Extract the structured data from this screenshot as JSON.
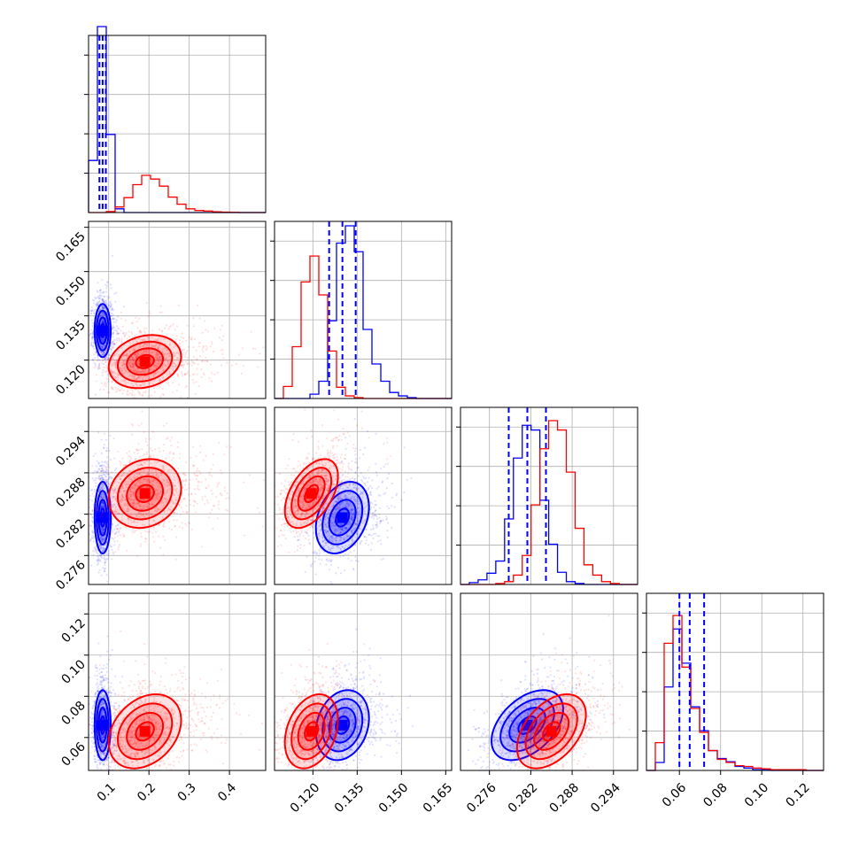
{
  "chart_data": {
    "type": "corner",
    "series": [
      {
        "name": "",
        "color": "#0000ff",
        "quantiles_shown": true,
        "mean": [
          0.085,
          0.13,
          0.2815,
          0.066
        ],
        "std": [
          0.01,
          0.0045,
          0.0026,
          0.0085
        ],
        "quantiles": [
          [
            0.077,
            0.085,
            0.093
          ],
          [
            0.1255,
            0.13,
            0.1345
          ],
          [
            0.2788,
            0.2815,
            0.2842
          ],
          [
            0.06,
            0.065,
            0.072
          ]
        ],
        "corr": [
          [
            0,
            0,
            0,
            0
          ],
          [
            0,
            0,
            0.3,
            0.2
          ],
          [
            0,
            0.3,
            0,
            0.45
          ],
          [
            0,
            0.2,
            0.45,
            0
          ]
        ]
      },
      {
        "name": "",
        "color": "#ff0000",
        "quantiles_shown": false,
        "mean": [
          0.19,
          0.1195,
          0.285,
          0.063
        ],
        "std": [
          0.045,
          0.0045,
          0.0025,
          0.009
        ],
        "corr": [
          [
            0,
            0.2,
            0.15,
            0.3
          ],
          [
            0.2,
            0,
            0.5,
            0.3
          ],
          [
            0.15,
            0.5,
            0,
            0.45
          ],
          [
            0.3,
            0.3,
            0.45,
            0
          ]
        ]
      }
    ],
    "parameters": [
      {
        "xlim": [
          0.05,
          0.49
        ],
        "ticks": [
          0.1,
          0.2,
          0.3,
          0.4
        ],
        "tick_labels": [
          "0.1",
          "0.2",
          "0.3",
          "0.4"
        ]
      },
      {
        "xlim": [
          0.107,
          0.167
        ],
        "ticks": [
          0.12,
          0.135,
          0.15,
          0.165
        ],
        "tick_labels": [
          "0.120",
          "0.135",
          "0.150",
          "0.165"
        ]
      },
      {
        "xlim": [
          0.2718,
          0.2975
        ],
        "ticks": [
          0.276,
          0.282,
          0.288,
          0.294
        ],
        "tick_labels": [
          "0.276",
          "0.282",
          "0.288",
          "0.294"
        ]
      },
      {
        "xlim": [
          0.044,
          0.13
        ],
        "ticks": [
          0.06,
          0.08,
          0.1,
          0.12
        ],
        "tick_labels": [
          "0.06",
          "0.08",
          "0.10",
          "0.12"
        ]
      }
    ],
    "histograms": [
      {
        "edges": [
          0.05,
          0.072,
          0.094,
          0.116,
          0.138,
          0.16,
          0.182,
          0.204,
          0.226,
          0.248,
          0.27,
          0.292,
          0.314,
          0.336,
          0.358,
          0.38,
          0.402,
          0.424,
          0.446,
          0.468,
          0.49
        ],
        "blue": [
          0.28,
          1.0,
          0.42,
          0.02,
          0,
          0,
          0,
          0,
          0,
          0,
          0,
          0,
          0,
          0,
          0,
          0,
          0,
          0,
          0,
          0
        ],
        "red": [
          0,
          0,
          0.005,
          0.03,
          0.08,
          0.15,
          0.2,
          0.18,
          0.142,
          0.083,
          0.045,
          0.02,
          0.011,
          0.008,
          0.004,
          0.002,
          0.001,
          0,
          0,
          0
        ]
      },
      {
        "edges": [
          0.107,
          0.11,
          0.113,
          0.116,
          0.119,
          0.122,
          0.125,
          0.128,
          0.131,
          0.134,
          0.137,
          0.14,
          0.143,
          0.146,
          0.149,
          0.152,
          0.155,
          0.158,
          0.161,
          0.164,
          0.167
        ],
        "blue": [
          0,
          0,
          0,
          0,
          0.005,
          0.02,
          0.09,
          0.18,
          0.2,
          0.17,
          0.08,
          0.04,
          0.02,
          0.007,
          0.003,
          0.001,
          0,
          0,
          0,
          0
        ],
        "red": [
          0,
          0.014,
          0.06,
          0.135,
          0.165,
          0.12,
          0.055,
          0.013,
          0.003,
          0.001,
          0,
          0,
          0,
          0,
          0,
          0,
          0,
          0,
          0,
          0
        ]
      },
      {
        "edges": [
          0.2718,
          0.27308,
          0.27436,
          0.27564,
          0.27692,
          0.2782,
          0.27948,
          0.28076,
          0.28204,
          0.28332,
          0.2846,
          0.28588,
          0.28716,
          0.28844,
          0.28972,
          0.291,
          0.29228,
          0.29356,
          0.29484,
          0.29612,
          0.2975
        ],
        "blue": [
          0,
          0.002,
          0.005,
          0.012,
          0.025,
          0.07,
          0.135,
          0.17,
          0.165,
          0.09,
          0.043,
          0.013,
          0.003,
          0.001,
          0,
          0,
          0,
          0,
          0,
          0
        ],
        "red": [
          0,
          0,
          0,
          0,
          0.001,
          0.003,
          0.01,
          0.031,
          0.085,
          0.145,
          0.175,
          0.165,
          0.12,
          0.06,
          0.021,
          0.01,
          0.003,
          0.001,
          0,
          0
        ]
      },
      {
        "edges": [
          0.044,
          0.0483,
          0.0526,
          0.0569,
          0.0612,
          0.0655,
          0.0698,
          0.0741,
          0.0784,
          0.0827,
          0.087,
          0.0913,
          0.0956,
          0.0999,
          0.1042,
          0.1085,
          0.1128,
          0.1171,
          0.1214,
          0.1257,
          0.13
        ],
        "blue": [
          0,
          0.01,
          0.105,
          0.178,
          0.135,
          0.08,
          0.05,
          0.025,
          0.015,
          0.011,
          0.005,
          0.003,
          0.001,
          0.001,
          0,
          0,
          0,
          0,
          0,
          0
        ],
        "red": [
          0,
          0.035,
          0.16,
          0.195,
          0.13,
          0.078,
          0.048,
          0.025,
          0.014,
          0.01,
          0.006,
          0.005,
          0.003,
          0.002,
          0.001,
          0.001,
          0.001,
          0.001,
          0,
          0
        ]
      }
    ],
    "grid": true,
    "legend": "none"
  }
}
